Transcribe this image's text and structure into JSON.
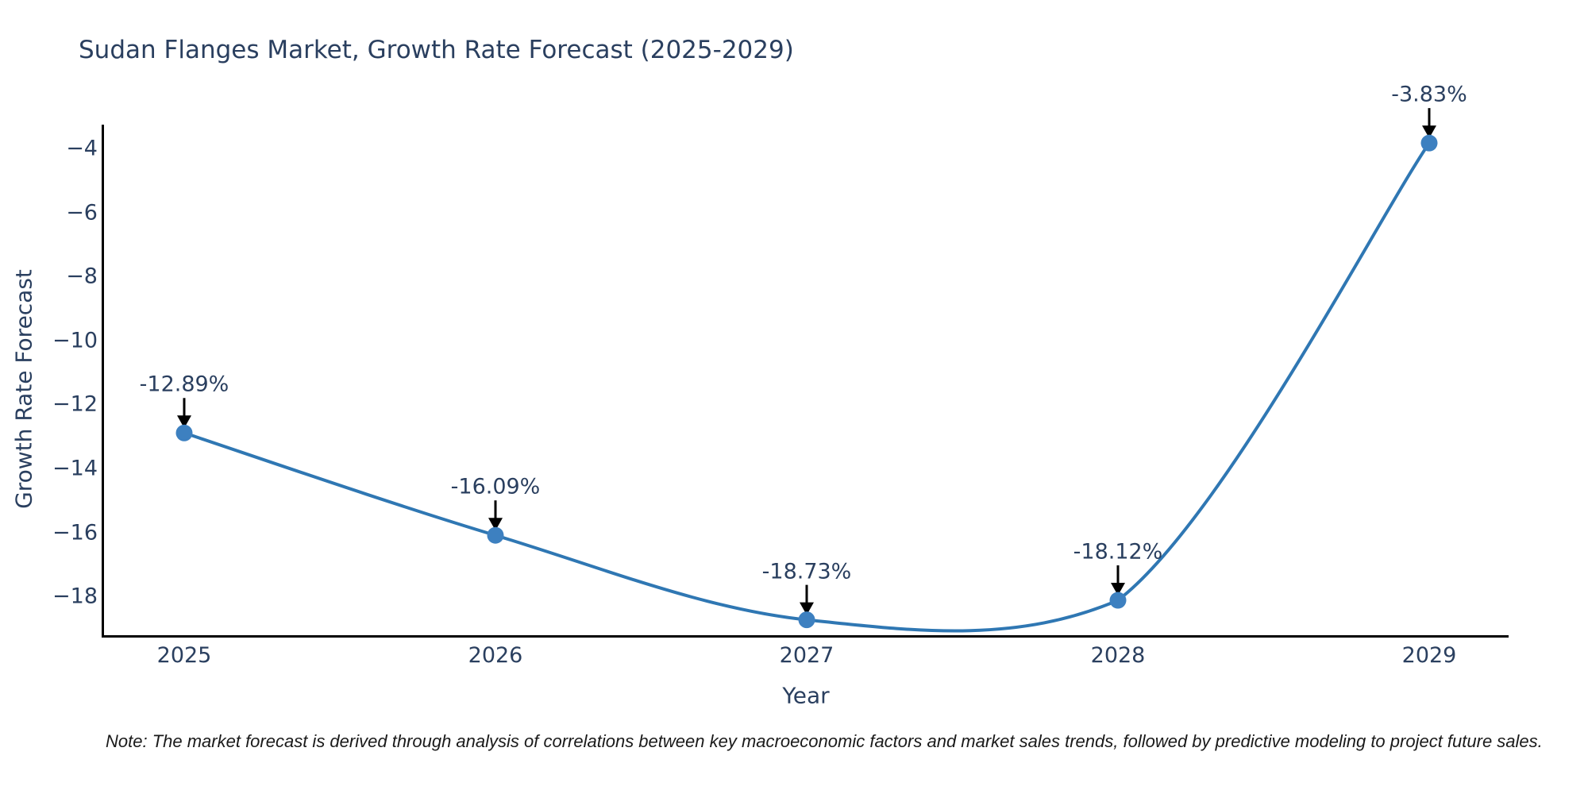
{
  "title": "Sudan Flanges Market, Growth Rate Forecast (2025-2029)",
  "note": "Note: The market forecast is derived through analysis of correlations between key macroeconomic factors and market sales trends, followed by predictive modeling to project future sales.",
  "colors": {
    "line": "#2f77b3",
    "marker": "#3d80c0",
    "text": "#2a3f5f",
    "axis": "#000000",
    "arrow": "#000000",
    "background": "#ffffff"
  },
  "chart_data": {
    "type": "line",
    "line_shape": "spline",
    "title": "Sudan Flanges Market, Growth Rate Forecast (2025-2029)",
    "xlabel": "Year",
    "ylabel": "Growth Rate Forecast",
    "x": [
      2025,
      2026,
      2027,
      2028,
      2029
    ],
    "y": [
      -12.89,
      -16.09,
      -18.73,
      -18.12,
      -3.83
    ],
    "point_labels": [
      "-12.89%",
      "-16.09%",
      "-18.73%",
      "-18.12%",
      "-3.83%"
    ],
    "xtick_labels": [
      "2025",
      "2026",
      "2027",
      "2028",
      "2029"
    ],
    "ytick_values": [
      -4,
      -6,
      -8,
      -10,
      -12,
      -14,
      -16,
      -18
    ],
    "ytick_labels": [
      "−4",
      "−6",
      "−8",
      "−10",
      "−12",
      "−14",
      "−16",
      "−18"
    ],
    "xlim": [
      2024.74,
      2029.26
    ],
    "ylim": [
      -19.4,
      -3.3
    ],
    "grid": false,
    "legend_position": "none",
    "annotations_have_arrows": true
  }
}
